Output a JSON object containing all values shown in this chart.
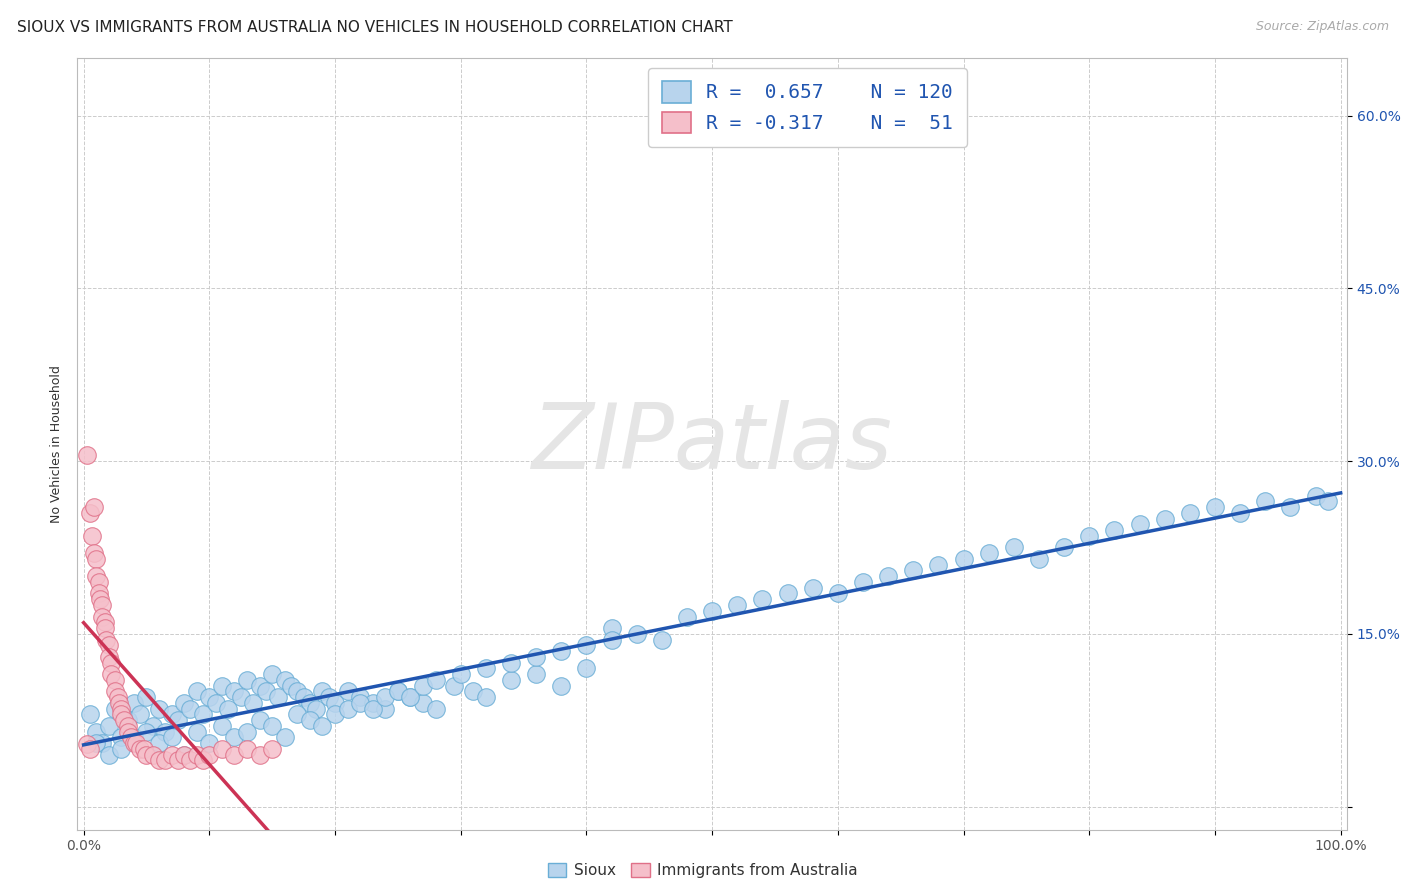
{
  "title": "SIOUX VS IMMIGRANTS FROM AUSTRALIA NO VEHICLES IN HOUSEHOLD CORRELATION CHART",
  "source": "Source: ZipAtlas.com",
  "ylabel": "No Vehicles in Household",
  "xlim": [
    -0.005,
    1.005
  ],
  "ylim": [
    -0.02,
    0.65
  ],
  "sioux_color": "#b8d4ed",
  "sioux_edge_color": "#6aaed6",
  "australia_color": "#f5bfca",
  "australia_edge_color": "#e07088",
  "sioux_line_color": "#2055b0",
  "australia_line_color": "#cc3355",
  "watermark_color": "#e5e5e5",
  "grid_color": "#cccccc",
  "title_color": "#222222",
  "tick_color_y": "#2055b0",
  "tick_color_x": "#555555",
  "source_color": "#aaaaaa",
  "legend_text_color": "#2055b0",
  "background": "#ffffff",
  "sioux_R": 0.657,
  "sioux_N": 120,
  "australia_R": -0.317,
  "australia_N": 51,
  "marker_size": 160,
  "line_width": 2.5,
  "title_fontsize": 11,
  "ylabel_fontsize": 9,
  "tick_fontsize": 10,
  "legend_fontsize": 14,
  "source_fontsize": 9,
  "sioux_x": [
    0.005,
    0.01,
    0.015,
    0.02,
    0.025,
    0.03,
    0.035,
    0.04,
    0.045,
    0.05,
    0.055,
    0.06,
    0.065,
    0.07,
    0.075,
    0.08,
    0.085,
    0.09,
    0.095,
    0.1,
    0.105,
    0.11,
    0.115,
    0.12,
    0.125,
    0.13,
    0.135,
    0.14,
    0.145,
    0.15,
    0.155,
    0.16,
    0.165,
    0.17,
    0.175,
    0.18,
    0.185,
    0.19,
    0.195,
    0.2,
    0.21,
    0.22,
    0.23,
    0.24,
    0.25,
    0.26,
    0.27,
    0.28,
    0.295,
    0.31,
    0.32,
    0.34,
    0.36,
    0.38,
    0.4,
    0.42,
    0.44,
    0.46,
    0.48,
    0.5,
    0.52,
    0.54,
    0.56,
    0.58,
    0.6,
    0.62,
    0.64,
    0.66,
    0.68,
    0.7,
    0.72,
    0.74,
    0.76,
    0.78,
    0.8,
    0.82,
    0.84,
    0.86,
    0.88,
    0.9,
    0.92,
    0.94,
    0.96,
    0.98,
    0.99,
    0.01,
    0.02,
    0.03,
    0.04,
    0.05,
    0.06,
    0.07,
    0.08,
    0.09,
    0.1,
    0.11,
    0.12,
    0.13,
    0.14,
    0.15,
    0.16,
    0.17,
    0.18,
    0.19,
    0.2,
    0.21,
    0.22,
    0.23,
    0.24,
    0.25,
    0.26,
    0.27,
    0.28,
    0.3,
    0.32,
    0.34,
    0.36,
    0.38,
    0.4,
    0.42
  ],
  "sioux_y": [
    0.08,
    0.065,
    0.055,
    0.07,
    0.085,
    0.06,
    0.075,
    0.09,
    0.08,
    0.095,
    0.07,
    0.085,
    0.065,
    0.08,
    0.075,
    0.09,
    0.085,
    0.1,
    0.08,
    0.095,
    0.09,
    0.105,
    0.085,
    0.1,
    0.095,
    0.11,
    0.09,
    0.105,
    0.1,
    0.115,
    0.095,
    0.11,
    0.105,
    0.1,
    0.095,
    0.09,
    0.085,
    0.1,
    0.095,
    0.09,
    0.1,
    0.095,
    0.09,
    0.085,
    0.1,
    0.095,
    0.09,
    0.085,
    0.105,
    0.1,
    0.095,
    0.11,
    0.115,
    0.105,
    0.12,
    0.155,
    0.15,
    0.145,
    0.165,
    0.17,
    0.175,
    0.18,
    0.185,
    0.19,
    0.185,
    0.195,
    0.2,
    0.205,
    0.21,
    0.215,
    0.22,
    0.225,
    0.215,
    0.225,
    0.235,
    0.24,
    0.245,
    0.25,
    0.255,
    0.26,
    0.255,
    0.265,
    0.26,
    0.27,
    0.265,
    0.055,
    0.045,
    0.05,
    0.06,
    0.065,
    0.055,
    0.06,
    0.045,
    0.065,
    0.055,
    0.07,
    0.06,
    0.065,
    0.075,
    0.07,
    0.06,
    0.08,
    0.075,
    0.07,
    0.08,
    0.085,
    0.09,
    0.085,
    0.095,
    0.1,
    0.095,
    0.105,
    0.11,
    0.115,
    0.12,
    0.125,
    0.13,
    0.135,
    0.14,
    0.145
  ],
  "australia_x": [
    0.003,
    0.005,
    0.007,
    0.008,
    0.01,
    0.01,
    0.012,
    0.012,
    0.013,
    0.015,
    0.015,
    0.017,
    0.017,
    0.018,
    0.02,
    0.02,
    0.022,
    0.022,
    0.025,
    0.025,
    0.027,
    0.028,
    0.03,
    0.03,
    0.032,
    0.035,
    0.035,
    0.038,
    0.04,
    0.042,
    0.045,
    0.048,
    0.05,
    0.055,
    0.06,
    0.065,
    0.07,
    0.075,
    0.08,
    0.085,
    0.09,
    0.095,
    0.1,
    0.11,
    0.12,
    0.13,
    0.14,
    0.15,
    0.003,
    0.005,
    0.008
  ],
  "australia_y": [
    0.054,
    0.05,
    0.235,
    0.22,
    0.215,
    0.2,
    0.195,
    0.185,
    0.18,
    0.175,
    0.165,
    0.16,
    0.155,
    0.145,
    0.14,
    0.13,
    0.125,
    0.115,
    0.11,
    0.1,
    0.095,
    0.09,
    0.085,
    0.08,
    0.075,
    0.07,
    0.065,
    0.06,
    0.055,
    0.055,
    0.05,
    0.05,
    0.045,
    0.045,
    0.04,
    0.04,
    0.045,
    0.04,
    0.045,
    0.04,
    0.045,
    0.04,
    0.045,
    0.05,
    0.045,
    0.05,
    0.045,
    0.05,
    0.305,
    0.255,
    0.26
  ]
}
